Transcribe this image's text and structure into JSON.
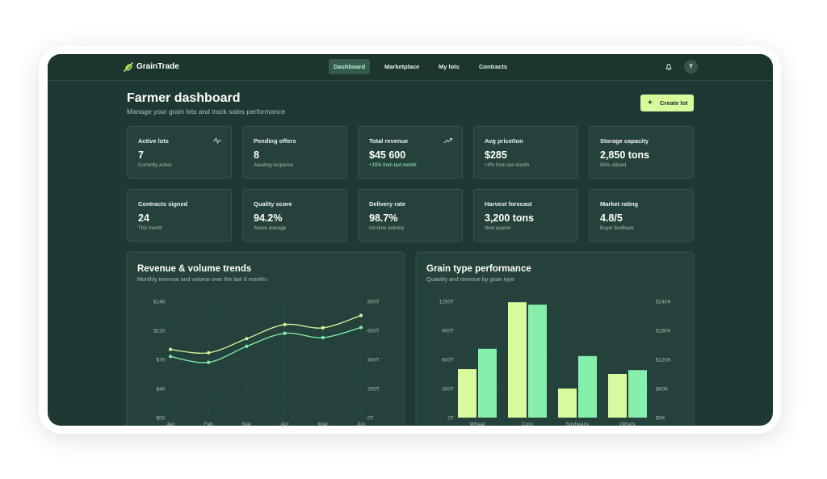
{
  "nav": {
    "brand": "GrainTrade",
    "items": [
      "Dashboard",
      "Marketplace",
      "My lots",
      "Contracts"
    ],
    "active": 0,
    "avatar": "Y"
  },
  "header": {
    "title": "Farmer dashboard",
    "subtitle": "Manage your grain lots and track sales performance",
    "button": "Create lot"
  },
  "stats": [
    {
      "label": "Active lots",
      "value": "7",
      "note": "Currently active"
    },
    {
      "label": "Pending offers",
      "value": "8",
      "note": "Awaiting response"
    },
    {
      "label": "Total revenue",
      "value": "$45 600",
      "note": "+15% from last month",
      "positive": true
    },
    {
      "label": "Avg price/ton",
      "value": "$285",
      "note": "+8% from last month"
    },
    {
      "label": "Storage capacity",
      "value": "2,850 tons",
      "note": "85% utilized"
    },
    {
      "label": "Contracts signed",
      "value": "24",
      "note": "This month"
    },
    {
      "label": "Quality score",
      "value": "94.2%",
      "note": "Above average"
    },
    {
      "label": "Delivery rate",
      "value": "98.7%",
      "note": "On-time delivery"
    },
    {
      "label": "Harvest forecast",
      "value": "3,200 tons",
      "note": "Next quarter"
    },
    {
      "label": "Market rating",
      "value": "4.8/5",
      "note": "Buyer feedback"
    }
  ],
  "chart_data": [
    {
      "type": "line",
      "title": "Revenue & volume trends",
      "subtitle": "Monthly revenue and volume over the last 6 months",
      "categories": [
        "Jan",
        "Feb",
        "Mar",
        "Apr",
        "May",
        "Jun"
      ],
      "series": [
        {
          "color": "#d9f99d",
          "values": [
            8200,
            7800,
            9500,
            11200,
            10800,
            12300
          ]
        },
        {
          "color": "#86efac",
          "axis": "y2",
          "values": [
            420,
            380,
            490,
            580,
            550,
            620
          ]
        }
      ],
      "ylim": [
        0,
        14000
      ],
      "yticks": [
        {
          "value": 0,
          "label": "$0K"
        },
        {
          "value": 3500,
          "label": "$4K"
        },
        {
          "value": 7000,
          "label": "$7K"
        },
        {
          "value": 10500,
          "label": "$11K"
        },
        {
          "value": 14000,
          "label": "$14K"
        }
      ],
      "y2lim": [
        0,
        800
      ],
      "y2ticks": [
        {
          "value": 0,
          "label": "0T"
        },
        {
          "value": 200,
          "label": "200T"
        },
        {
          "value": 400,
          "label": "400T"
        },
        {
          "value": 600,
          "label": "600T"
        },
        {
          "value": 800,
          "label": "800T"
        }
      ],
      "grid": true
    },
    {
      "type": "bar",
      "title": "Grain type performance",
      "subtitle": "Quantity and revenue by grain type",
      "categories": [
        "Wheat",
        "Corn",
        "Soybeans",
        "Others"
      ],
      "series": [
        {
          "color": "#d9f99d",
          "values": [
            500,
            1190,
            300,
            450
          ]
        },
        {
          "color": "#86efac",
          "axis": "y2",
          "values": [
            142000,
            233000,
            127000,
            98000
          ]
        }
      ],
      "ylim": [
        0,
        1200
      ],
      "yticks": [
        {
          "value": 0,
          "label": "0T"
        },
        {
          "value": 300,
          "label": "300T"
        },
        {
          "value": 600,
          "label": "600T"
        },
        {
          "value": 900,
          "label": "900T"
        },
        {
          "value": 1200,
          "label": "1200T"
        }
      ],
      "y2lim": [
        0,
        240000
      ],
      "y2ticks": [
        {
          "value": 0,
          "label": "$0K"
        },
        {
          "value": 60000,
          "label": "$60K"
        },
        {
          "value": 120000,
          "label": "$120K"
        },
        {
          "value": 180000,
          "label": "$180K"
        },
        {
          "value": 240000,
          "label": "$240K"
        }
      ],
      "grid": true
    }
  ]
}
